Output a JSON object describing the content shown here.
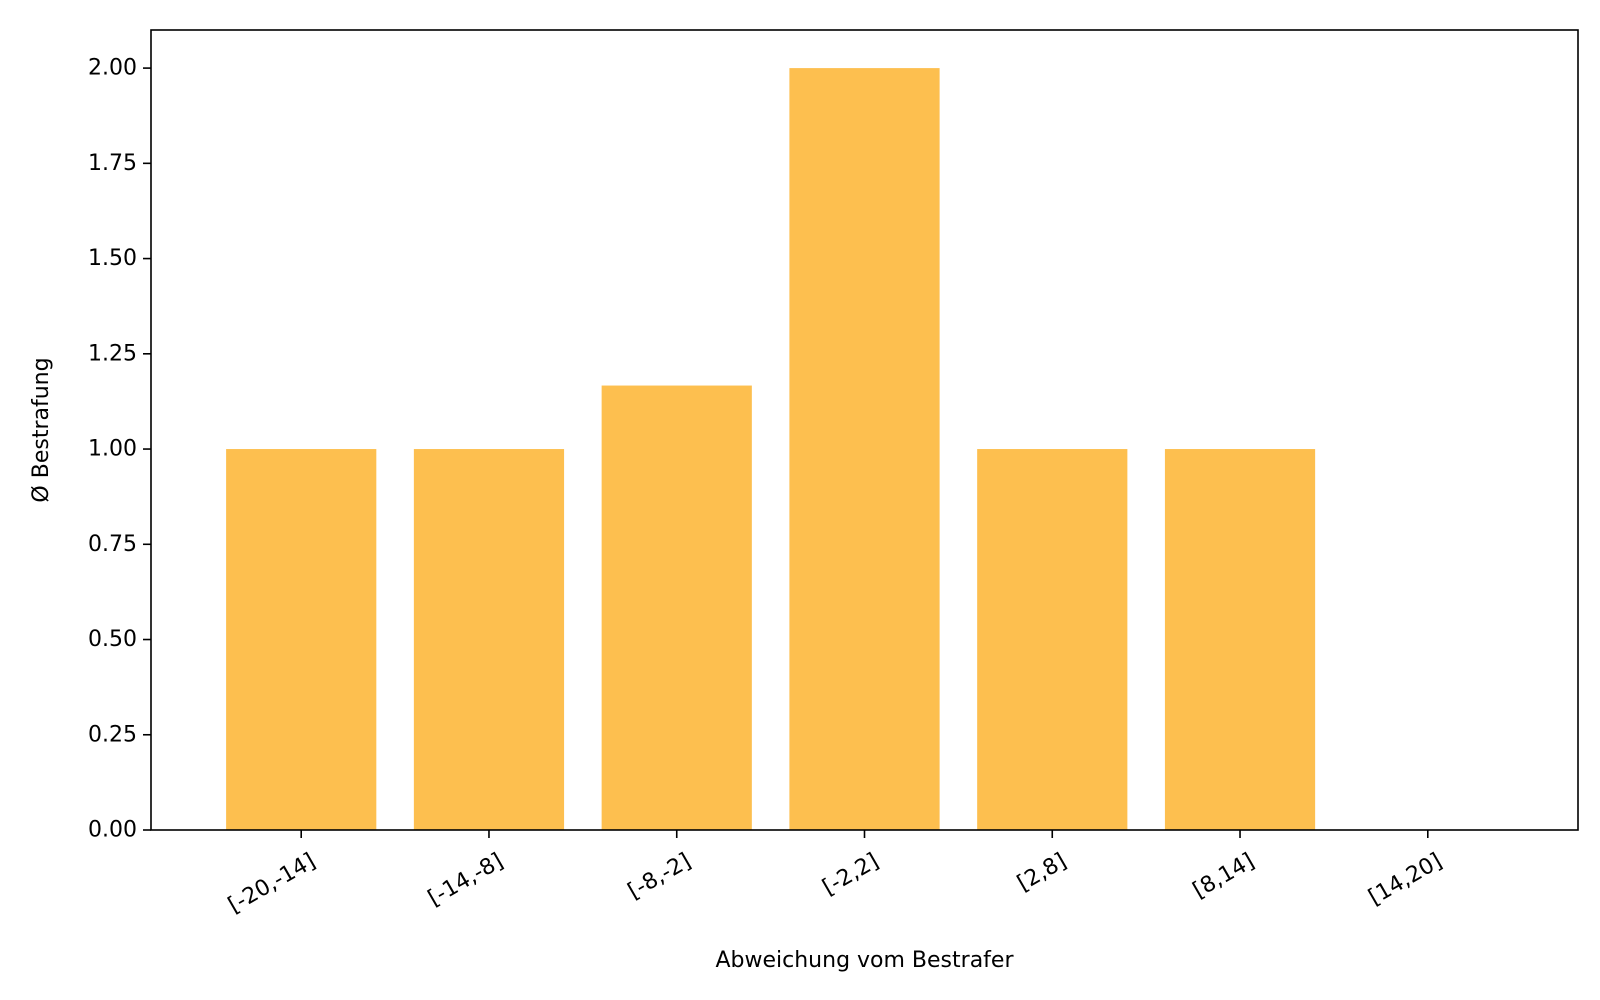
{
  "chart_data": {
    "type": "bar",
    "categories": [
      "[-20,-14]",
      "[-14,-8]",
      "[-8,-2]",
      "[-2,2]",
      "[2,8]",
      "[8,14]",
      "[14,20]"
    ],
    "values": [
      1.0,
      1.0,
      1.1667,
      2.0,
      1.0,
      1.0,
      0.0
    ],
    "xlabel": "Abweichung vom Bestrafer",
    "ylabel": "Ø Bestrafung",
    "ylim": [
      0,
      2.1
    ],
    "yticks": [
      "0.00",
      "0.25",
      "0.50",
      "0.75",
      "1.00",
      "1.25",
      "1.50",
      "1.75",
      "2.00"
    ],
    "bar_color": "#FDBF4F",
    "grid": false,
    "legend": false
  }
}
